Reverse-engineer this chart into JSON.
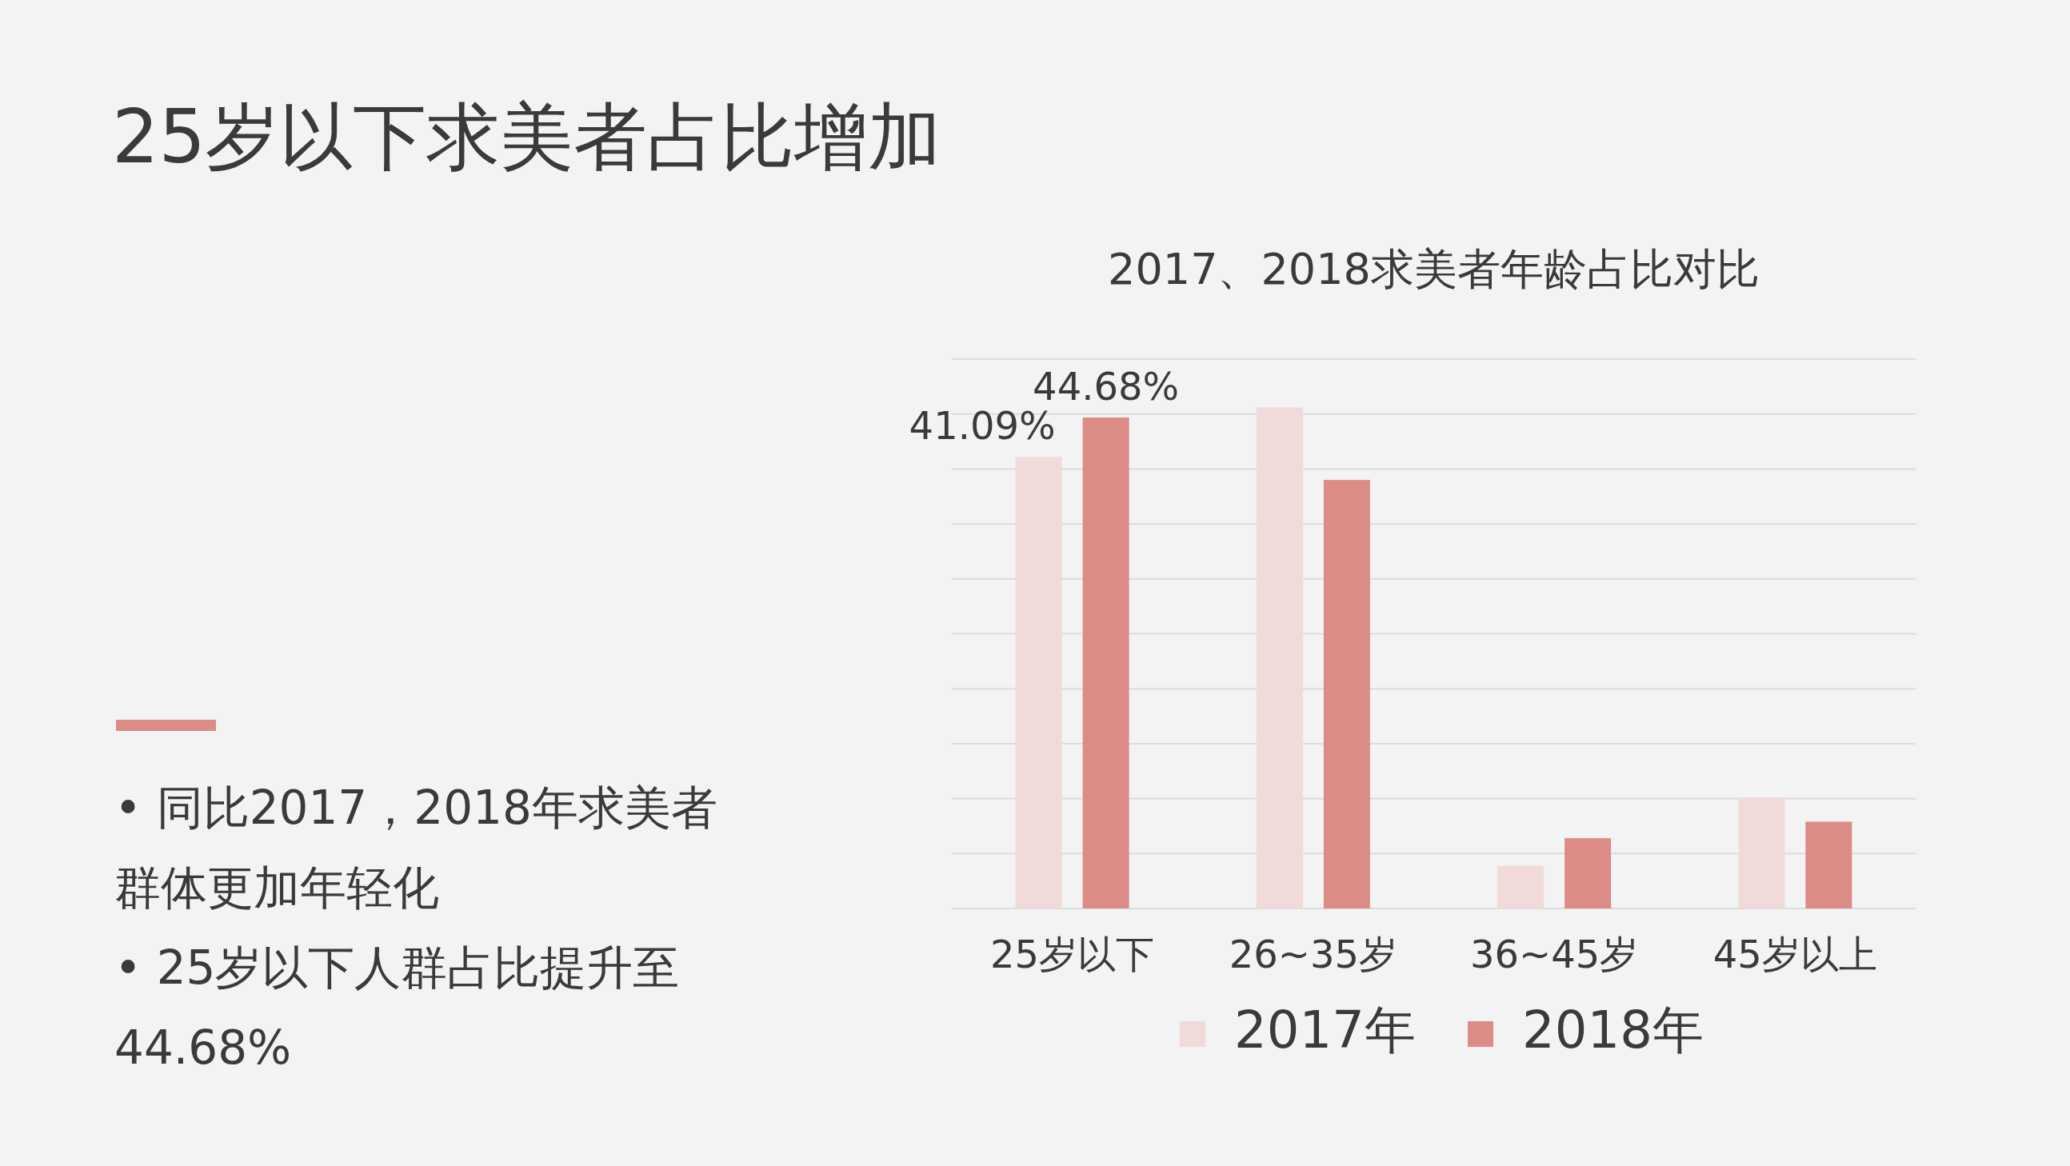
{
  "chart_data": {
    "type": "bar",
    "title": "25岁以下求美者占比增加",
    "subtitle": "2017、2018求美者年龄占比对比",
    "categories": [
      "25岁以下",
      "26~35岁",
      "36~45岁",
      "45岁以上"
    ],
    "series": [
      {
        "name": "2017年",
        "color": "#f0dada",
        "values": [
          41.09,
          45.6,
          3.9,
          10.1
        ],
        "value_labels": [
          "41.09%",
          null,
          null,
          null
        ]
      },
      {
        "name": "2018年",
        "color": "#dc8c86",
        "values": [
          44.68,
          39.0,
          6.4,
          7.9
        ],
        "value_labels": [
          "44.68%",
          null,
          null,
          null
        ]
      }
    ],
    "ylim": [
      0,
      50
    ],
    "yticks": [
      {
        "value": 0,
        "label": null
      },
      {
        "value": 5,
        "label": null
      },
      {
        "value": 10,
        "label": null
      },
      {
        "value": 15,
        "label": null
      },
      {
        "value": 20,
        "label": null
      },
      {
        "value": 25,
        "label": null
      },
      {
        "value": 30,
        "label": null
      },
      {
        "value": 35,
        "label": null
      },
      {
        "value": 40,
        "label": null
      },
      {
        "value": 45,
        "label": null
      },
      {
        "value": 50,
        "label": null
      }
    ],
    "grid": "y",
    "legend": "bottom",
    "tick_labels": "x",
    "annotations": [
      "• 同比2017，2018年求美者群体更加年轻化",
      "• 25岁以下人群占比提升至44.68%"
    ]
  }
}
